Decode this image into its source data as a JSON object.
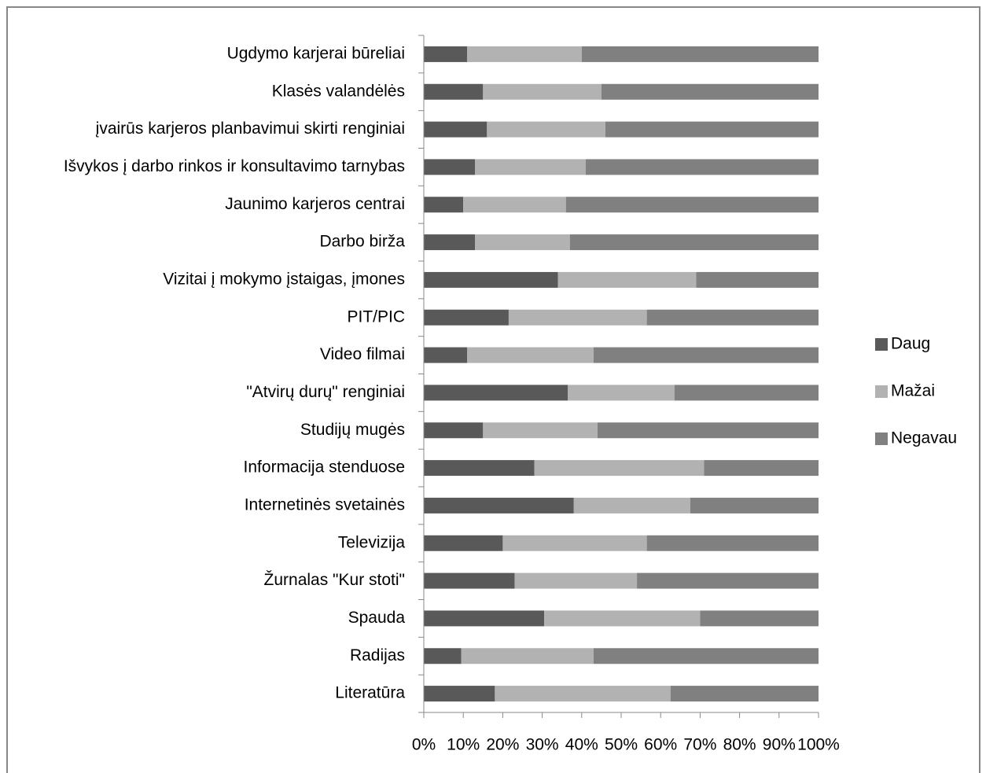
{
  "chart_data": {
    "type": "stacked-barh",
    "categories": [
      "Ugdymo karjerai būreliai",
      "Klasės valandėlės",
      "įvairūs karjeros planbavimui skirti renginiai",
      "Išvykos į darbo rinkos ir konsultavimo tarnybas",
      "Jaunimo karjeros centrai",
      "Darbo birža",
      "Vizitai į mokymo įstaigas, įmones",
      "PIT/PIC",
      "Video filmai",
      "\"Atvirų durų\" renginiai",
      "Studijų mugės",
      "Informacija stenduose",
      "Internetinės svetainės",
      "Televizija",
      "Žurnalas \"Kur stoti\"",
      "Spauda",
      "Radijas",
      "Literatūra"
    ],
    "series": [
      {
        "name": "Daug",
        "color": "#595959",
        "values": [
          11,
          15,
          16,
          13,
          10,
          13,
          34,
          21.5,
          11,
          36.5,
          15,
          28,
          38,
          20,
          23,
          30.5,
          9.5,
          18
        ]
      },
      {
        "name": "Mažai",
        "color": "#b2b2b2",
        "values": [
          29,
          30,
          30,
          28,
          26,
          24,
          35,
          35,
          32,
          27,
          29,
          43,
          29.5,
          36.5,
          31,
          39.5,
          33.5,
          44.5
        ]
      },
      {
        "name": "Negavau",
        "color": "#808080",
        "values": [
          60,
          55,
          54,
          59,
          64,
          63,
          31,
          43.5,
          57,
          36.5,
          56,
          29,
          32.5,
          43.5,
          46,
          30,
          57,
          37.5
        ]
      }
    ],
    "xlim": [
      0,
      100
    ],
    "xticks": [
      {
        "value": 0,
        "label": "0%"
      },
      {
        "value": 10,
        "label": "10%"
      },
      {
        "value": 20,
        "label": "20%"
      },
      {
        "value": 30,
        "label": "30%"
      },
      {
        "value": 40,
        "label": "40%"
      },
      {
        "value": 50,
        "label": "50%"
      },
      {
        "value": 60,
        "label": "60%"
      },
      {
        "value": 70,
        "label": "70%"
      },
      {
        "value": 80,
        "label": "80%"
      },
      {
        "value": 90,
        "label": "90%"
      },
      {
        "value": 100,
        "label": "100%"
      }
    ],
    "grid": false,
    "legend": "right"
  }
}
